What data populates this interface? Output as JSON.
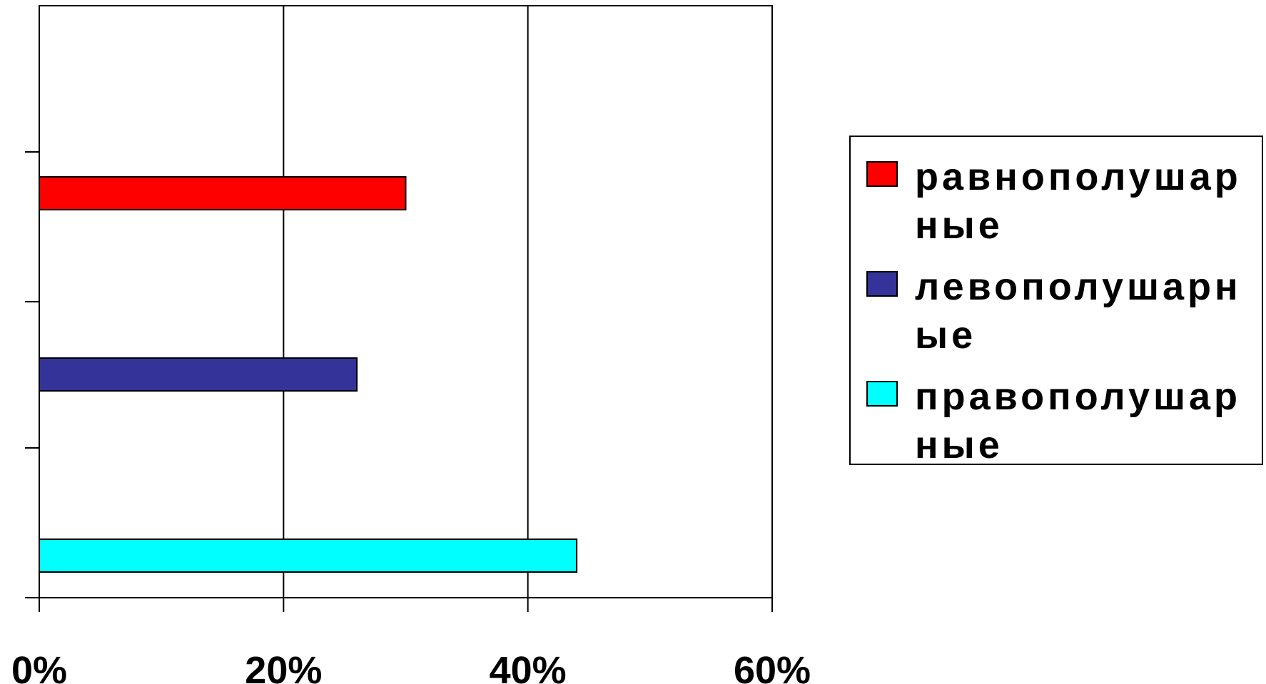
{
  "chart_data": {
    "type": "bar",
    "orientation": "horizontal",
    "title": "",
    "xlabel": "",
    "ylabel": "",
    "xlim": [
      0,
      60
    ],
    "x_ticks": [
      "0%",
      "20%",
      "40%",
      "60%"
    ],
    "grid": "vertical",
    "legend_position": "right",
    "series": [
      {
        "name": "равнополушарные",
        "value": 30,
        "color": "#ff0000"
      },
      {
        "name": "левополушарные",
        "value": 26,
        "color": "#333399"
      },
      {
        "name": "правополушарные",
        "value": 44,
        "color": "#00ffff"
      }
    ]
  }
}
